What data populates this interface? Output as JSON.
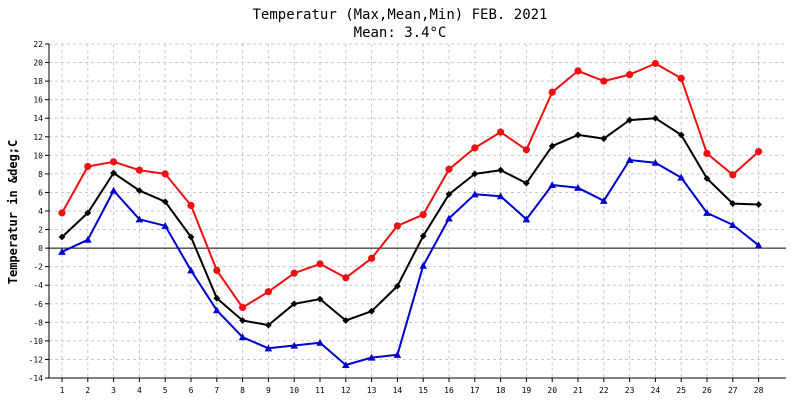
{
  "chart_data": {
    "type": "line",
    "title": "Temperatur (Max,Mean,Min) FEB. 2021",
    "subtitle": "Mean: 3.4°C",
    "xlabel": "",
    "ylabel": "Temperatur in &deg;C",
    "ylim": [
      -14,
      22
    ],
    "yticks": [
      -14,
      -12,
      -10,
      -8,
      -6,
      -4,
      -2,
      0,
      2,
      4,
      6,
      8,
      10,
      12,
      14,
      16,
      18,
      20,
      22
    ],
    "x": [
      1,
      2,
      3,
      4,
      5,
      6,
      7,
      8,
      9,
      10,
      11,
      12,
      13,
      14,
      15,
      16,
      17,
      18,
      19,
      20,
      21,
      22,
      23,
      24,
      25,
      26,
      27,
      28
    ],
    "grid": true,
    "legend": "none",
    "series": [
      {
        "key": "max",
        "color": "#ee1111",
        "marker": "circle",
        "values": [
          3.8,
          8.8,
          9.3,
          8.4,
          8.0,
          4.6,
          -2.4,
          -6.4,
          -4.7,
          -2.7,
          -1.7,
          -3.2,
          -1.1,
          2.4,
          3.6,
          8.5,
          10.8,
          12.5,
          10.6,
          16.8,
          19.1,
          18.0,
          18.7,
          19.9,
          18.3,
          10.2,
          7.9,
          10.4
        ]
      },
      {
        "key": "mean",
        "color": "#000000",
        "marker": "diamond",
        "values": [
          1.2,
          3.8,
          8.1,
          6.2,
          5.0,
          1.2,
          -5.4,
          -7.8,
          -8.3,
          -6.0,
          -5.5,
          -7.8,
          -6.8,
          -4.1,
          1.3,
          5.8,
          8.0,
          8.4,
          7.0,
          11.0,
          12.2,
          11.8,
          13.8,
          14.0,
          12.2,
          7.5,
          4.8,
          4.7
        ]
      },
      {
        "key": "min",
        "color": "#0000cc",
        "marker": "triangle",
        "values": [
          -0.4,
          0.9,
          6.2,
          3.1,
          2.4,
          -2.4,
          -6.7,
          -9.6,
          -10.8,
          -10.5,
          -10.2,
          -12.6,
          -11.8,
          -11.5,
          -1.9,
          3.2,
          5.8,
          5.6,
          3.1,
          6.8,
          6.5,
          5.1,
          9.5,
          9.2,
          7.6,
          3.8,
          2.5,
          0.3
        ]
      }
    ],
    "zero_line": true
  }
}
